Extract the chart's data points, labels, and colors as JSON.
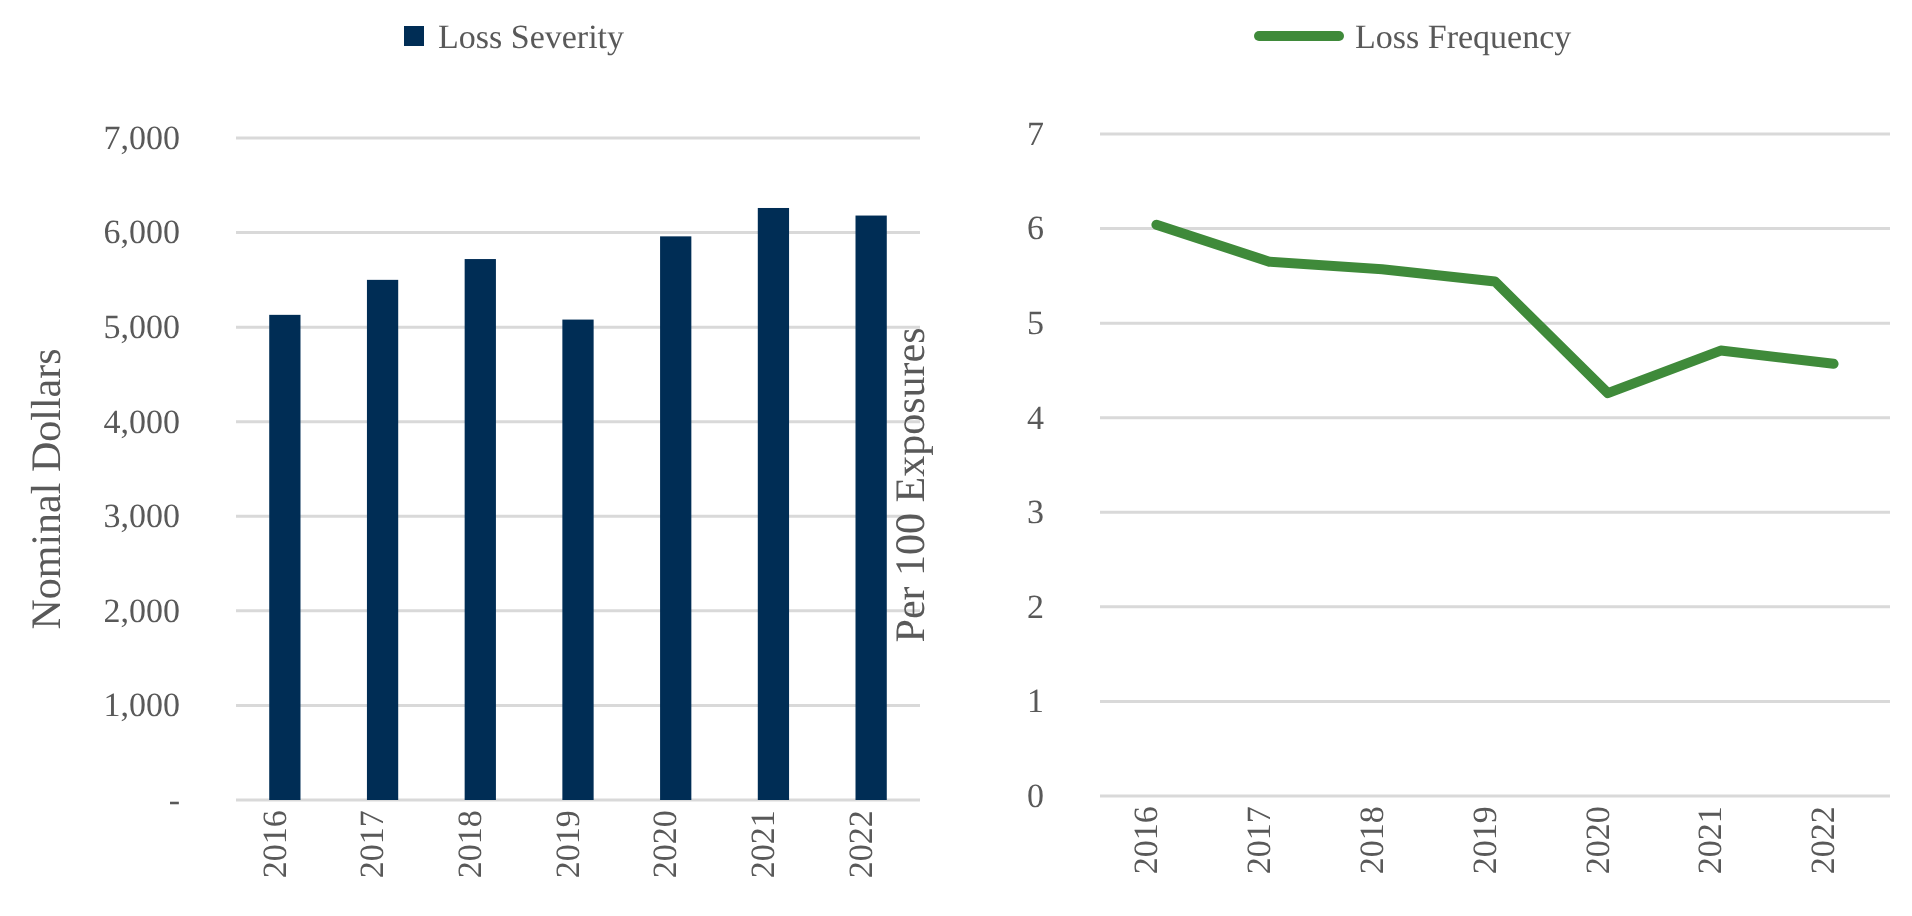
{
  "chart_data": [
    {
      "type": "bar",
      "categories": [
        "2016",
        "2017",
        "2018",
        "2019",
        "2020",
        "2021",
        "2022"
      ],
      "ylabel": "Nominal Dollars",
      "series": [
        {
          "name": "Loss Severity",
          "color": "#002d55",
          "values": [
            5130,
            5500,
            5720,
            5080,
            5960,
            6260,
            6180
          ]
        }
      ],
      "ylim": [
        0,
        7000
      ],
      "yticks": [
        {
          "value": 0,
          "label": "-"
        },
        {
          "value": 1000,
          "label": "1,000"
        },
        {
          "value": 2000,
          "label": "2,000"
        },
        {
          "value": 3000,
          "label": "3,000"
        },
        {
          "value": 4000,
          "label": "4,000"
        },
        {
          "value": 5000,
          "label": "5,000"
        },
        {
          "value": 6000,
          "label": "6,000"
        },
        {
          "value": 7000,
          "label": "7,000"
        }
      ],
      "grid": "y",
      "legend": "top"
    },
    {
      "type": "line",
      "categories": [
        "2016",
        "2017",
        "2018",
        "2019",
        "2020",
        "2021",
        "2022"
      ],
      "ylabel": "Per 100 Exposures",
      "series": [
        {
          "name": "Loss Frequency",
          "color": "#3f8a3a",
          "values": [
            6.04,
            5.65,
            5.57,
            5.44,
            4.26,
            4.71,
            4.57
          ]
        }
      ],
      "ylim": [
        0,
        7
      ],
      "yticks": [
        0,
        1,
        2,
        3,
        4,
        5,
        6,
        7
      ],
      "grid": "y",
      "legend": "top",
      "marker": "none",
      "line_style": "solid"
    }
  ]
}
